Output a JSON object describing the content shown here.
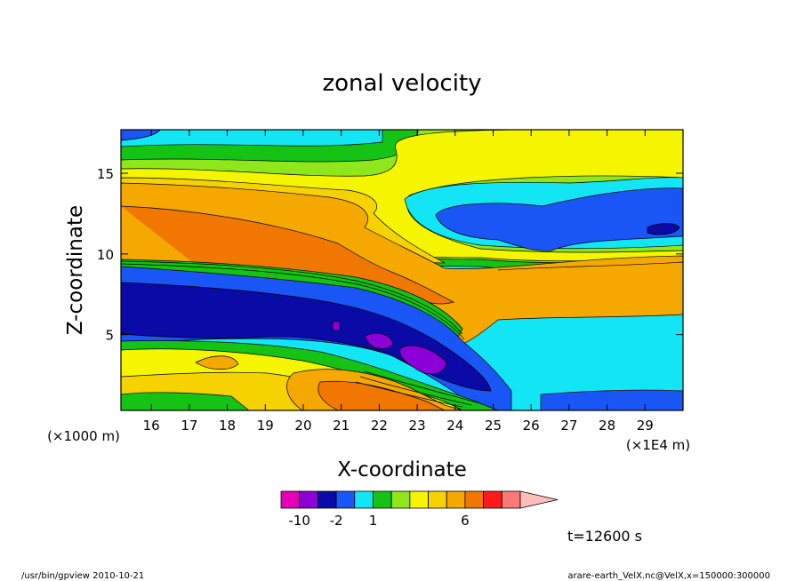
{
  "chart_data": {
    "type": "heatmap",
    "title": "zonal velocity",
    "xlabel": "X-coordinate",
    "ylabel": "Z-coordinate",
    "x_scale_label": "(×1E4 m)",
    "y_scale_label": "(×1000 m)",
    "xlim": [
      15.2,
      30.0
    ],
    "ylim": [
      0.3,
      17.7
    ],
    "x_ticks": [
      "16",
      "17",
      "18",
      "19",
      "20",
      "21",
      "22",
      "23",
      "24",
      "25",
      "26",
      "27",
      "28",
      "29"
    ],
    "y_ticks": [
      "5",
      "10",
      "15"
    ],
    "colorbar": {
      "levels": [
        -14,
        -10,
        -6,
        -2,
        -1,
        1,
        2,
        3,
        4,
        5,
        6,
        8,
        10
      ],
      "tick_labels": [
        "-10",
        "-2",
        "1",
        "6"
      ],
      "colors": [
        "#e400b4",
        "#8a00d6",
        "#0a0aa6",
        "#1a56f5",
        "#12e6f5",
        "#14c314",
        "#8fe61a",
        "#f5f500",
        "#f5d200",
        "#f5a800",
        "#f07800",
        "#ff1a1a",
        "#ff7878",
        "#ffbcbc"
      ]
    },
    "time_label": "t=12600 s"
  },
  "footer": {
    "left": "/usr/bin/gpview   2010-10-21",
    "right": "arare-earth_VelX.nc@VelX,x=150000:300000"
  }
}
